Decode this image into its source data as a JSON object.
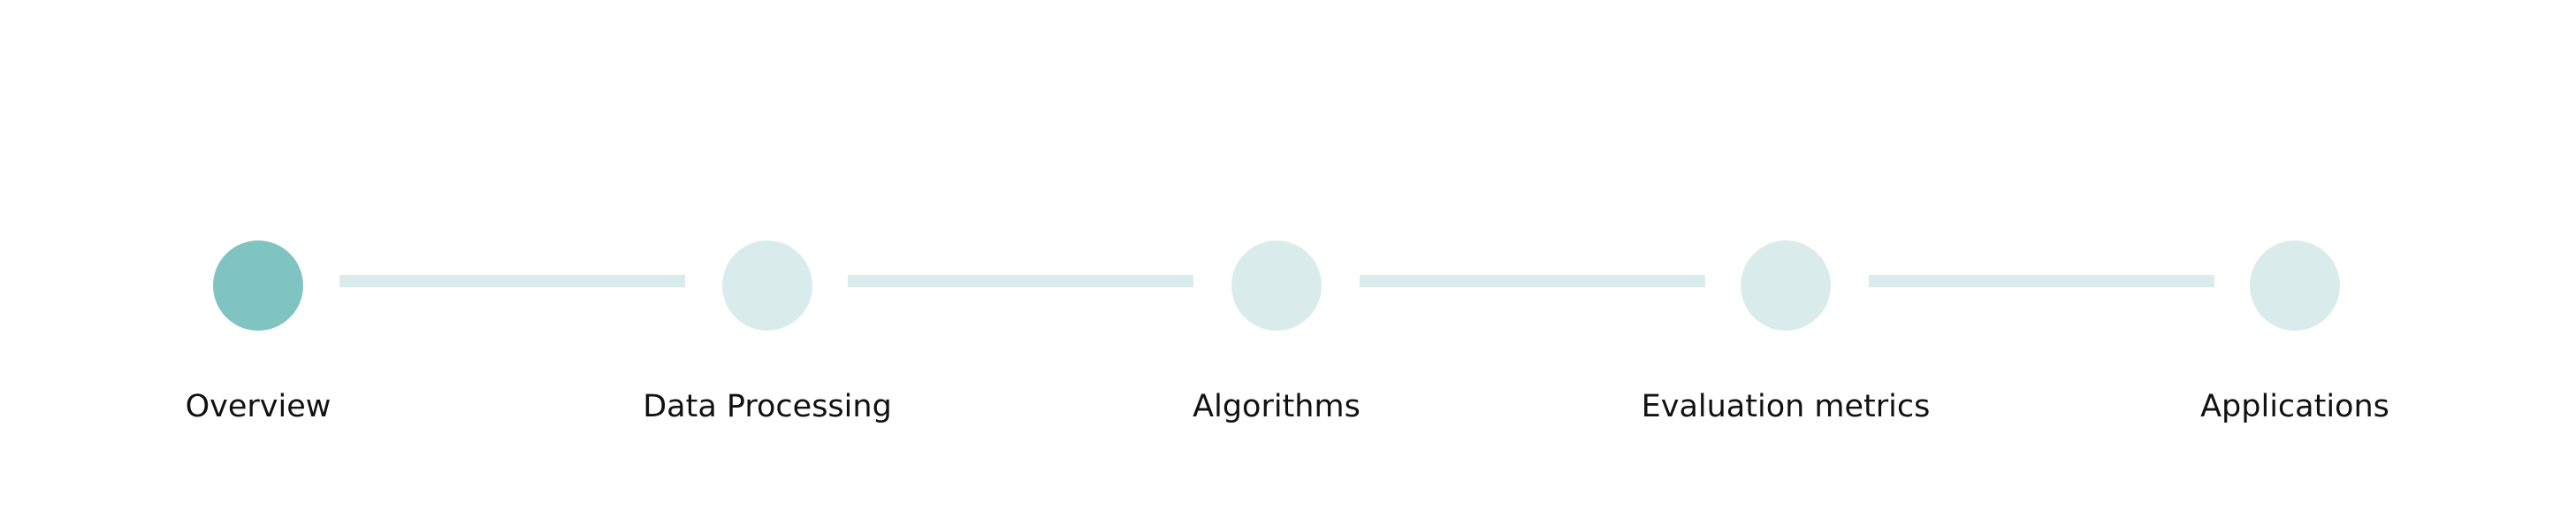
{
  "stepper": {
    "active_index": 0,
    "colors": {
      "active": "#80c4c2",
      "inactive": "#d9eceb",
      "connector": "#d9eceb",
      "label": "#111111"
    },
    "steps": [
      {
        "label": "Overview"
      },
      {
        "label": "Data Processing"
      },
      {
        "label": "Algorithms"
      },
      {
        "label": "Evaluation metrics"
      },
      {
        "label": "Applications"
      }
    ]
  }
}
